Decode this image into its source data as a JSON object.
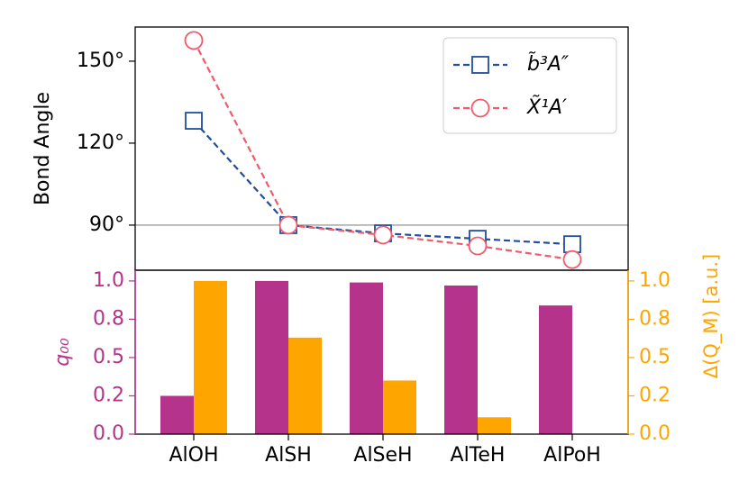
{
  "chart_data": [
    {
      "type": "line",
      "ylabel": "Bond Angle",
      "ylim": [
        73.5,
        162.5
      ],
      "yticks": [
        {
          "value": 90,
          "label": "90°"
        },
        {
          "value": 120,
          "label": "120°"
        },
        {
          "value": 150,
          "label": "150°"
        }
      ],
      "hline": 90,
      "legend": "upper right",
      "series": [
        {
          "name": "b̃³A″",
          "color": "#1f4e9c",
          "marker": "square",
          "values": [
            128.2,
            90,
            87,
            85,
            83
          ]
        },
        {
          "name": "X̃¹A′",
          "color": "#f05a6a",
          "marker": "circle",
          "values": [
            157.6,
            90,
            86.4,
            82.4,
            77.4
          ]
        }
      ]
    },
    {
      "type": "bar",
      "categories": [
        "AlOH",
        "AlSH",
        "AlSeH",
        "AlTeH",
        "AlPoH"
      ],
      "ylabel": "q₀₀",
      "y2label": "Δ(Q_M) [a.u.]",
      "ylim": [
        0,
        1.07
      ],
      "yticks": [
        {
          "value": 0,
          "label": "0.0"
        },
        {
          "value": 0.25,
          "label": "0.2"
        },
        0.5,
        {
          "value": 0.75,
          "label": "0.8"
        },
        {
          "value": 1,
          "label": "1.0"
        }
      ],
      "y2lim": [
        0,
        1.07
      ],
      "y2ticks": [
        {
          "value": 0,
          "label": "0.0"
        },
        {
          "value": 0.25,
          "label": "0.2"
        },
        0.5,
        {
          "value": 0.75,
          "label": "0.8"
        },
        {
          "value": 1,
          "label": "1.0"
        }
      ],
      "series": [
        {
          "name": "q₀₀",
          "color": "#b5338a",
          "values": [
            0.25,
            1.0,
            0.99,
            0.97,
            0.84
          ]
        },
        {
          "name": "Δ(Q_M) [a.u.]",
          "color": "#ffa500",
          "axis": "y2",
          "values": [
            1.0,
            0.63,
            0.35,
            0.11,
            0
          ]
        }
      ]
    }
  ]
}
